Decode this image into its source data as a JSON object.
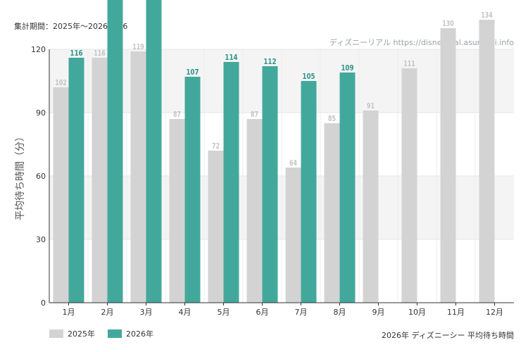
{
  "header": {
    "period": "集計期間：2025年～2026/8/26",
    "watermark": "ディズニーリアル https://disneyreal.asumirai.info"
  },
  "footer": {
    "caption": "2026年 ディズニーシー 平均待ち時間"
  },
  "colors": {
    "series_2025": "#d3d3d3",
    "series_2026": "#43a89c",
    "label_2025": "#c4c4c4",
    "label_2026": "#2f9488"
  },
  "chart_data": {
    "type": "bar",
    "categories": [
      "1月",
      "2月",
      "3月",
      "4月",
      "5月",
      "6月",
      "7月",
      "8月",
      "9月",
      "10月",
      "11月",
      "12月"
    ],
    "series": [
      {
        "name": "2025年",
        "values": [
          102,
          116,
          119,
          87,
          72,
          87,
          64,
          85,
          91,
          111,
          130,
          134
        ]
      },
      {
        "name": "2026年",
        "values": [
          116,
          null,
          null,
          107,
          114,
          112,
          105,
          109,
          null,
          null,
          null,
          null
        ]
      }
    ],
    "capped_2026": [
      false,
      true,
      true,
      false,
      false,
      false,
      false,
      false,
      false,
      false,
      false,
      false
    ],
    "ylabel": "平均待ち時間（分）",
    "ylim": [
      0,
      120
    ],
    "yticks": [
      0,
      30,
      60,
      90,
      120
    ],
    "grid": true,
    "legend": "bottom-left"
  }
}
